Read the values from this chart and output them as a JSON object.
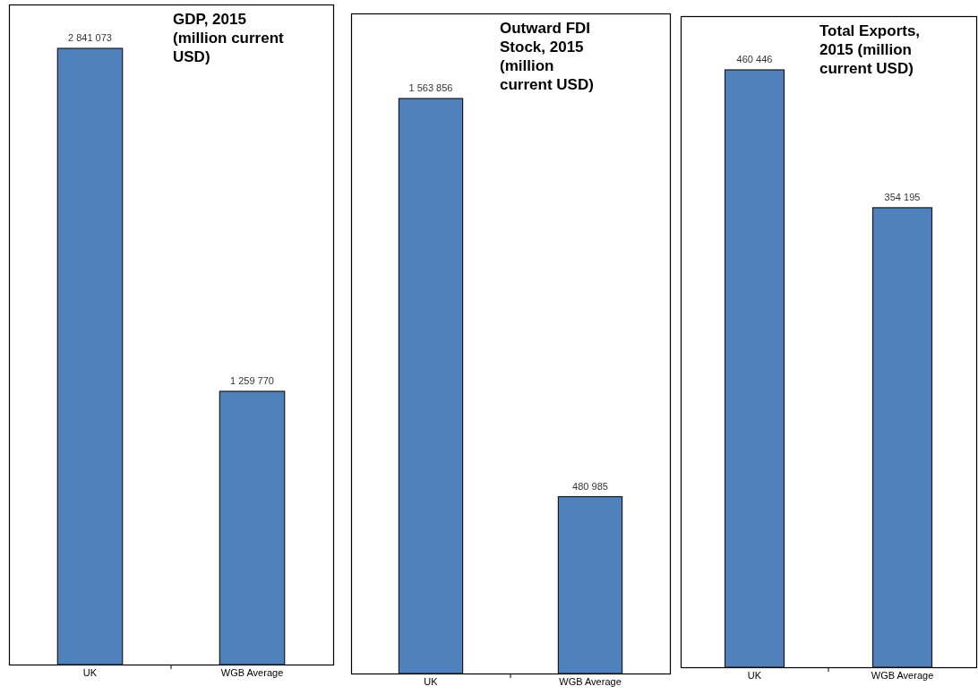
{
  "chart_data": [
    {
      "type": "bar",
      "title": "GDP, 2015 (million current USD)",
      "categories": [
        "UK",
        "WGB Average"
      ],
      "values": [
        2841073,
        1259770
      ],
      "value_labels": [
        "2 841 073",
        "1 259 770"
      ],
      "color": "#4f81bd"
    },
    {
      "type": "bar",
      "title": "Outward FDI Stock, 2015 (million current USD)",
      "categories": [
        "UK",
        "WGB Average"
      ],
      "values": [
        1563856,
        480985
      ],
      "value_labels": [
        "1 563 856",
        "480 985"
      ],
      "color": "#4f81bd"
    },
    {
      "type": "bar",
      "title": "Total Exports, 2015 (million current USD)",
      "categories": [
        "UK",
        "WGB Average"
      ],
      "values": [
        460446,
        354195
      ],
      "value_labels": [
        "460 446",
        "354 195"
      ],
      "color": "#4f81bd"
    }
  ]
}
